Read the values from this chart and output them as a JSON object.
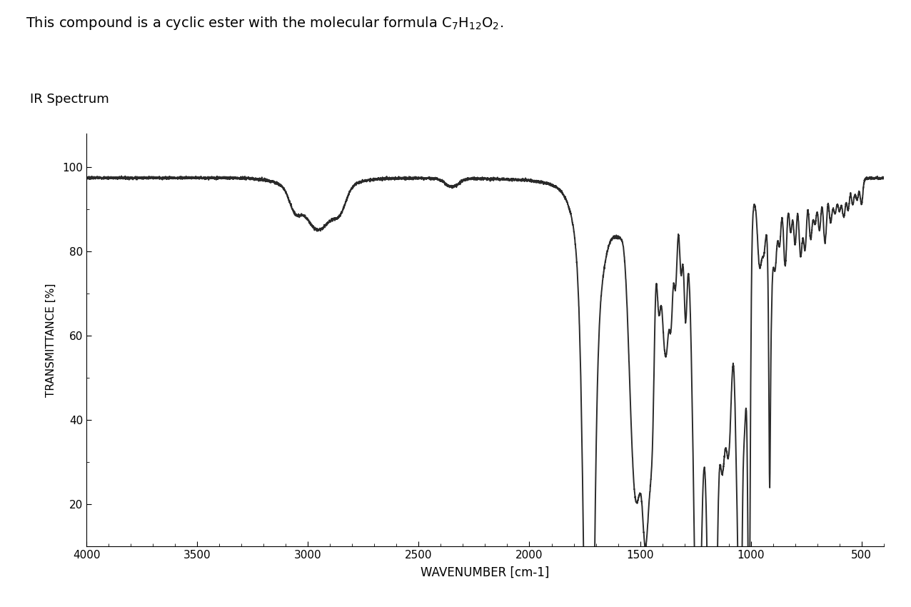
{
  "subtitle": "IR Spectrum",
  "xlabel": "WAVENUMBER [cm-1]",
  "ylabel": "TRANSMITTANCE [%]",
  "xlim": [
    4000,
    400
  ],
  "ylim": [
    10,
    108
  ],
  "yticks": [
    20,
    40,
    60,
    80,
    100
  ],
  "xticks": [
    4000,
    3500,
    3000,
    2500,
    2000,
    1500,
    1000,
    500
  ],
  "background_color": "#ffffff",
  "line_color": "#2a2a2a",
  "line_width": 1.4
}
